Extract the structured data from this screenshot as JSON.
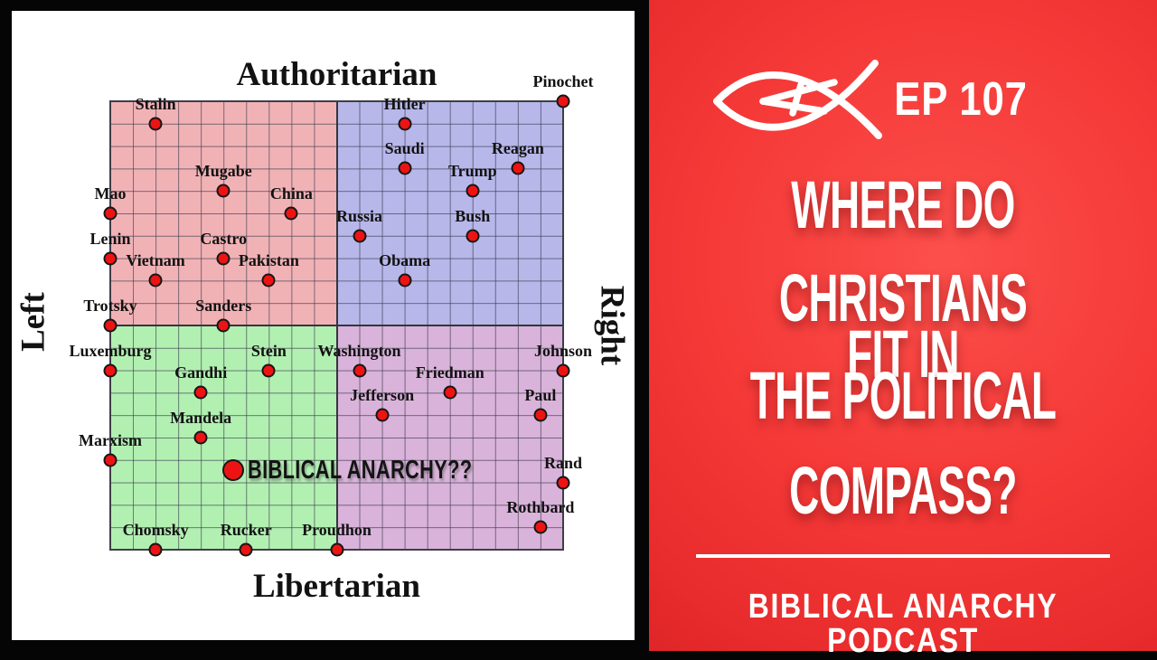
{
  "card": {
    "axis_top": "Authoritarian",
    "axis_bottom": "Libertarian",
    "axis_left": "Left",
    "axis_right": "Right"
  },
  "chart_data": {
    "type": "scatter",
    "title": "Political Compass",
    "x_range": [
      -10,
      10
    ],
    "y_range": [
      -10,
      10
    ],
    "x_axis_labels": {
      "min": "Left",
      "max": "Right"
    },
    "y_axis_labels": {
      "min": "Libertarian",
      "max": "Authoritarian"
    },
    "grid": true,
    "quadrant_colors": {
      "top_left": "#f1b2b6",
      "top_right": "#b7b7ea",
      "bottom_left": "#b2f0b2",
      "bottom_right": "#d9b3da"
    },
    "dot_color": "#ee1313",
    "points": [
      {
        "name": "Stalin",
        "x": -8,
        "y": 9
      },
      {
        "name": "Mugabe",
        "x": -5,
        "y": 6
      },
      {
        "name": "Mao",
        "x": -10,
        "y": 5
      },
      {
        "name": "China",
        "x": -2,
        "y": 5
      },
      {
        "name": "Lenin",
        "x": -10,
        "y": 3
      },
      {
        "name": "Castro",
        "x": -5,
        "y": 3
      },
      {
        "name": "Vietnam",
        "x": -8,
        "y": 2
      },
      {
        "name": "Pakistan",
        "x": -3,
        "y": 2
      },
      {
        "name": "Trotsky",
        "x": -10,
        "y": 0
      },
      {
        "name": "Sanders",
        "x": -5,
        "y": 0
      },
      {
        "name": "Pinochet",
        "x": 10,
        "y": 10
      },
      {
        "name": "Hitler",
        "x": 3,
        "y": 9
      },
      {
        "name": "Saudi",
        "x": 3,
        "y": 7
      },
      {
        "name": "Reagan",
        "x": 8,
        "y": 7
      },
      {
        "name": "Trump",
        "x": 6,
        "y": 6
      },
      {
        "name": "Russia",
        "x": 1,
        "y": 4
      },
      {
        "name": "Bush",
        "x": 6,
        "y": 4
      },
      {
        "name": "Obama",
        "x": 3,
        "y": 2
      },
      {
        "name": "Luxemburg",
        "x": -10,
        "y": -2
      },
      {
        "name": "Stein",
        "x": -3,
        "y": -2
      },
      {
        "name": "Washington",
        "x": 1,
        "y": -2
      },
      {
        "name": "Johnson",
        "x": 10,
        "y": -2
      },
      {
        "name": "Gandhi",
        "x": -6,
        "y": -3
      },
      {
        "name": "Friedman",
        "x": 5,
        "y": -3
      },
      {
        "name": "Jefferson",
        "x": 2,
        "y": -4
      },
      {
        "name": "Paul",
        "x": 9,
        "y": -4
      },
      {
        "name": "Mandela",
        "x": -6,
        "y": -5
      },
      {
        "name": "Marxism",
        "x": -10,
        "y": -6
      },
      {
        "name": "BIBLICAL ANARCHY??",
        "x": -4.57,
        "y": -6.45,
        "size": "large",
        "label_position": "right"
      },
      {
        "name": "Rand",
        "x": 10,
        "y": -7
      },
      {
        "name": "Rothbard",
        "x": 9,
        "y": -9
      },
      {
        "name": "Chomsky",
        "x": -8,
        "y": -10
      },
      {
        "name": "Rucker",
        "x": -4,
        "y": -10
      },
      {
        "name": "Proudhon",
        "x": 0,
        "y": -10
      }
    ]
  },
  "panel": {
    "accent_color": "#f23334",
    "logo_icon": "ichthys-anarchy-icon",
    "episode_label": "EP 107",
    "title_lines": [
      "WHERE DO",
      "CHRISTIANS FIT IN",
      "THE POLITICAL",
      "COMPASS?"
    ],
    "podcast_name": "BIBLICAL ANARCHY PODCAST"
  }
}
